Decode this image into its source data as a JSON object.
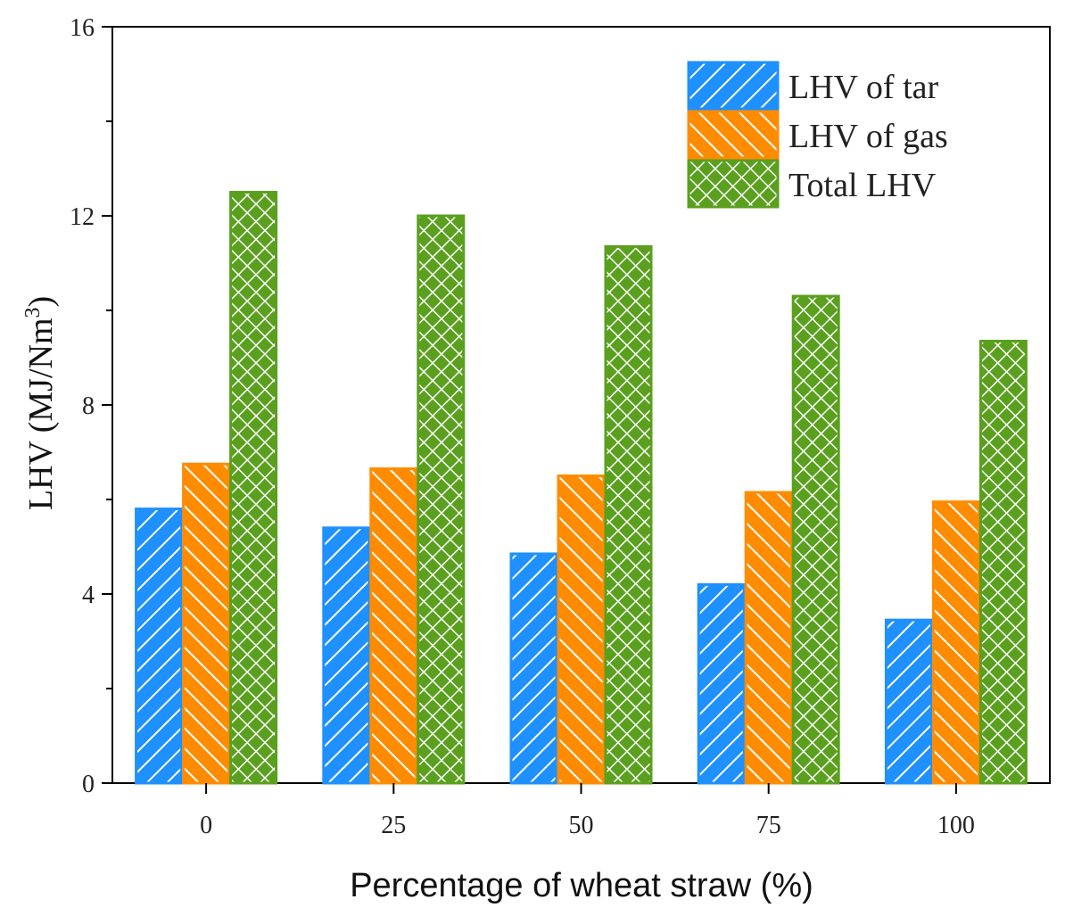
{
  "chart_data": {
    "type": "bar",
    "title": "",
    "xlabel": "Percentage of wheat straw (%)",
    "ylabel": "LHV (MJ/Nm",
    "ylabel_sup": "3",
    "ylabel_close": ")",
    "categories": [
      "0",
      "25",
      "50",
      "75",
      "100"
    ],
    "ylim": [
      0,
      16
    ],
    "yticks": [
      "0",
      "4",
      "8",
      "12",
      "16"
    ],
    "grid": false,
    "legend_position": "top-right",
    "series": [
      {
        "name": "LHV of tar",
        "values": [
          5.8,
          5.4,
          4.85,
          4.2,
          3.45
        ],
        "color": "#1e90ff",
        "pattern": "forward-diagonal"
      },
      {
        "name": "LHV of gas",
        "values": [
          6.75,
          6.65,
          6.5,
          6.15,
          5.95
        ],
        "color": "#ff8c00",
        "pattern": "back-diagonal"
      },
      {
        "name": "Total LHV",
        "values": [
          12.5,
          12.0,
          11.35,
          10.3,
          9.35
        ],
        "color": "#5aa01e",
        "pattern": "crosshatch"
      }
    ]
  }
}
